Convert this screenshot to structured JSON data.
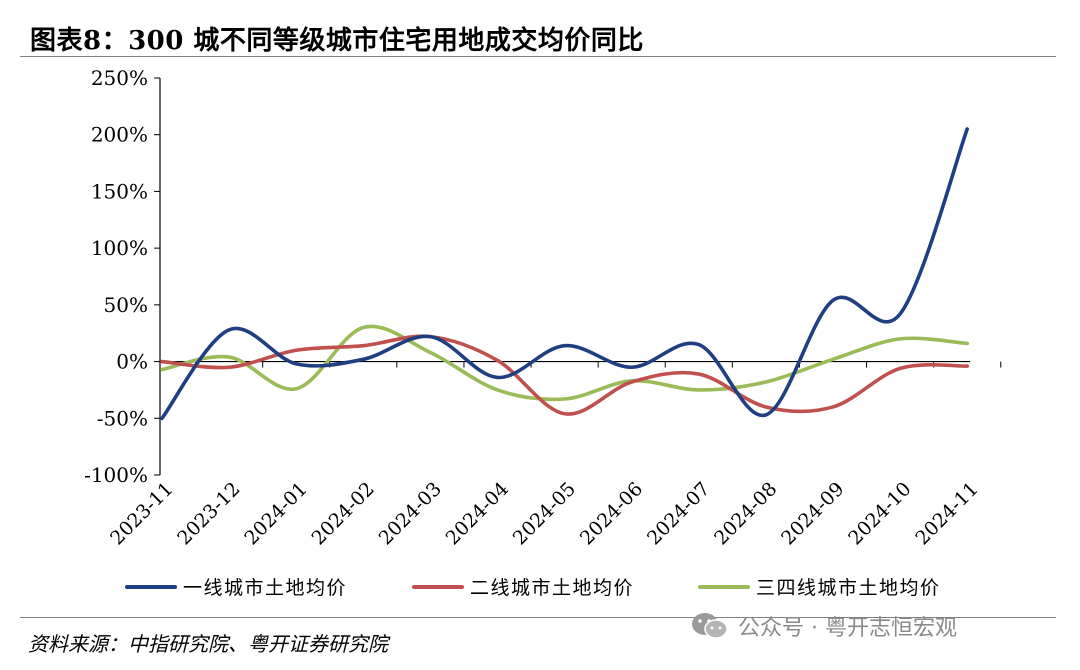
{
  "figure": {
    "title": "图表8：300 城不同等级城市住宅用地成交均价同比",
    "source": "资料来源：中指研究院、粤开证券研究院",
    "watermark": "公众号 · 粤开志恒宏观",
    "watermark_icon": "wechat-icon"
  },
  "chart_data": {
    "type": "line",
    "categories": [
      "2023-11",
      "2023-12",
      "2024-01",
      "2024-02",
      "2024-03",
      "2024-04",
      "2024-05",
      "2024-06",
      "2024-07",
      "2024-08",
      "2024-09",
      "2024-10",
      "2024-11"
    ],
    "yticks": [
      "250%",
      "200%",
      "150%",
      "100%",
      "50%",
      "0%",
      "-50%",
      "-100%"
    ],
    "ylim": [
      -100,
      250
    ],
    "ytick_values": [
      250,
      200,
      150,
      100,
      50,
      0,
      -50,
      -100
    ],
    "grid": false,
    "legend_position": "bottom",
    "series": [
      {
        "name": "一线城市土地均价",
        "color": "#1f3f82",
        "values": [
          -50,
          28,
          -2,
          2,
          22,
          -14,
          14,
          -5,
          15,
          -47,
          54,
          42,
          205
        ]
      },
      {
        "name": "二线城市土地均价",
        "color": "#c0504d",
        "values": [
          0,
          -5,
          10,
          14,
          22,
          1,
          -46,
          -18,
          -11,
          -40,
          -40,
          -6,
          -4
        ]
      },
      {
        "name": "三四线城市土地均价",
        "color": "#9bbb59",
        "values": [
          -7,
          4,
          -24,
          30,
          8,
          -25,
          -33,
          -17,
          -25,
          -18,
          2,
          20,
          16
        ]
      }
    ]
  }
}
